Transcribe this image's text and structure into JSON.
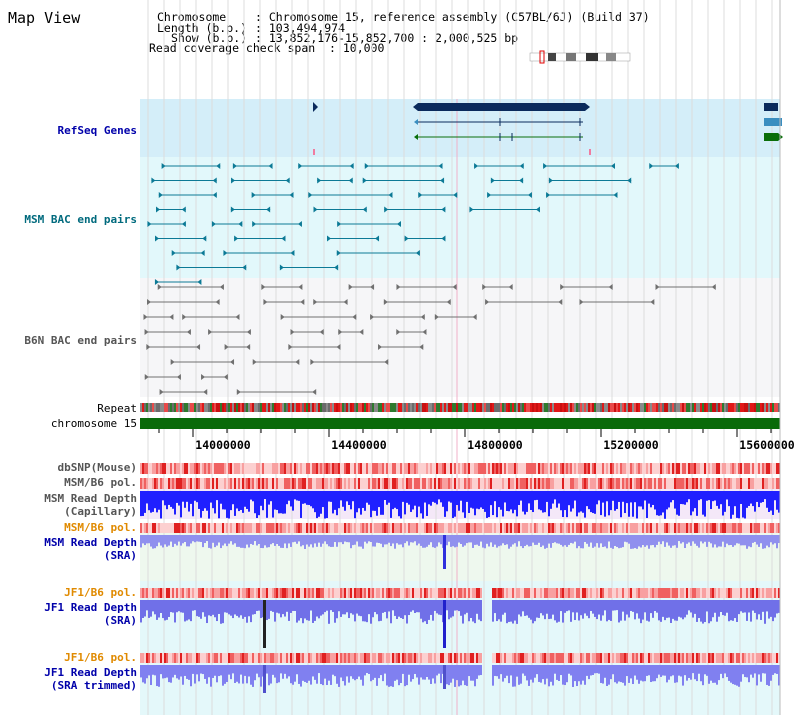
{
  "title": "Map View",
  "info": {
    "chromosome_label": "Chromosome",
    "chromosome_value": ": Chromosome 15, reference assembly (C57BL/6J) (Build 37)",
    "length_label": "Length (b.p.)",
    "length_value": ": 103,494,974",
    "show_label": "Show (b.p.)",
    "show_value": ": 13,852,176-15,852,700 : 2,000,525 bp",
    "coverage_label": "Read coverage check span",
    "coverage_value": ": 10,000"
  },
  "tracks": {
    "refseq": "RefSeq Genes",
    "msm_bac": "MSM BAC end pairs",
    "b6n_bac": "B6N BAC end pairs",
    "repeat": "Repeat",
    "chromosome": "chromosome 15",
    "dbsnp": "dbSNP(Mouse)",
    "msm_b6_pol_1": "MSM/B6 pol.",
    "msm_depth_cap": "MSM Read Depth\n(Capillary)",
    "msm_b6_pol_2": "MSM/B6 pol.",
    "msm_depth_sra": "MSM Read Depth\n(SRA)",
    "jf1_b6_pol_1": "JF1/B6 pol.",
    "jf1_depth_sra": "JF1 Read Depth\n(SRA)",
    "jf1_b6_pol_2": "JF1/B6 pol.",
    "jf1_depth_trim": "JF1 Read Depth\n(SRA trimmed)"
  },
  "axis": {
    "ticks": [
      "14000000",
      "14400000",
      "14800000",
      "15200000",
      "15600000"
    ]
  },
  "colors": {
    "refseq_bg": "#d4eef9",
    "msm_bg": "#e2f8fb",
    "b6n_bg": "#f4f4f7",
    "gene_dark": "#0a2a5c",
    "gene_mid": "#3a8ec0",
    "gene_green": "#0a6e0a",
    "chromosome": "#0a6a0a",
    "depth_blue": "#1c1cff",
    "depth_light": "#8a8af0"
  }
}
